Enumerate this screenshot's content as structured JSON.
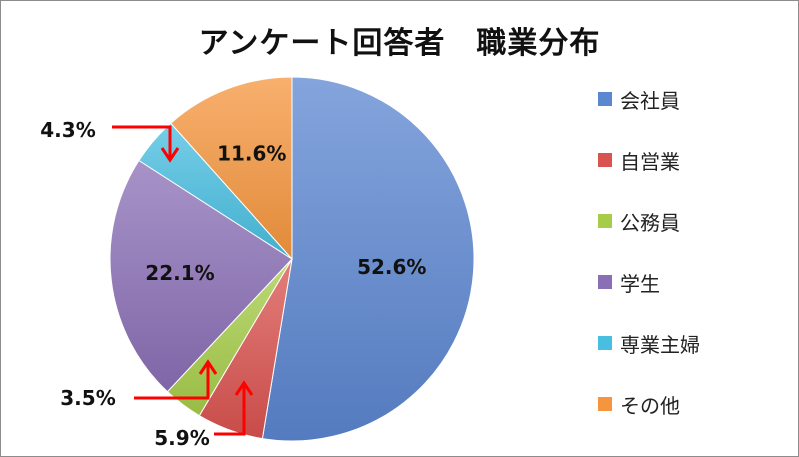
{
  "chart_data": {
    "type": "pie",
    "title": "アンケート回答者　職業分布",
    "categories": [
      "会社員",
      "自営業",
      "公務員",
      "学生",
      "専業主婦",
      "その他"
    ],
    "values": [
      52.6,
      5.9,
      3.5,
      22.1,
      4.3,
      11.6
    ],
    "data_labels": [
      "52.6%",
      "5.9%",
      "3.5%",
      "22.1%",
      "4.3%",
      "11.6%"
    ],
    "colors": [
      "#5b86d0",
      "#d9534f",
      "#a6cc4a",
      "#8a6fb6",
      "#48bee0",
      "#f5963e"
    ],
    "legend_position": "right",
    "start_angle": "top, clockwise"
  },
  "annotation_color": "#ff0000"
}
